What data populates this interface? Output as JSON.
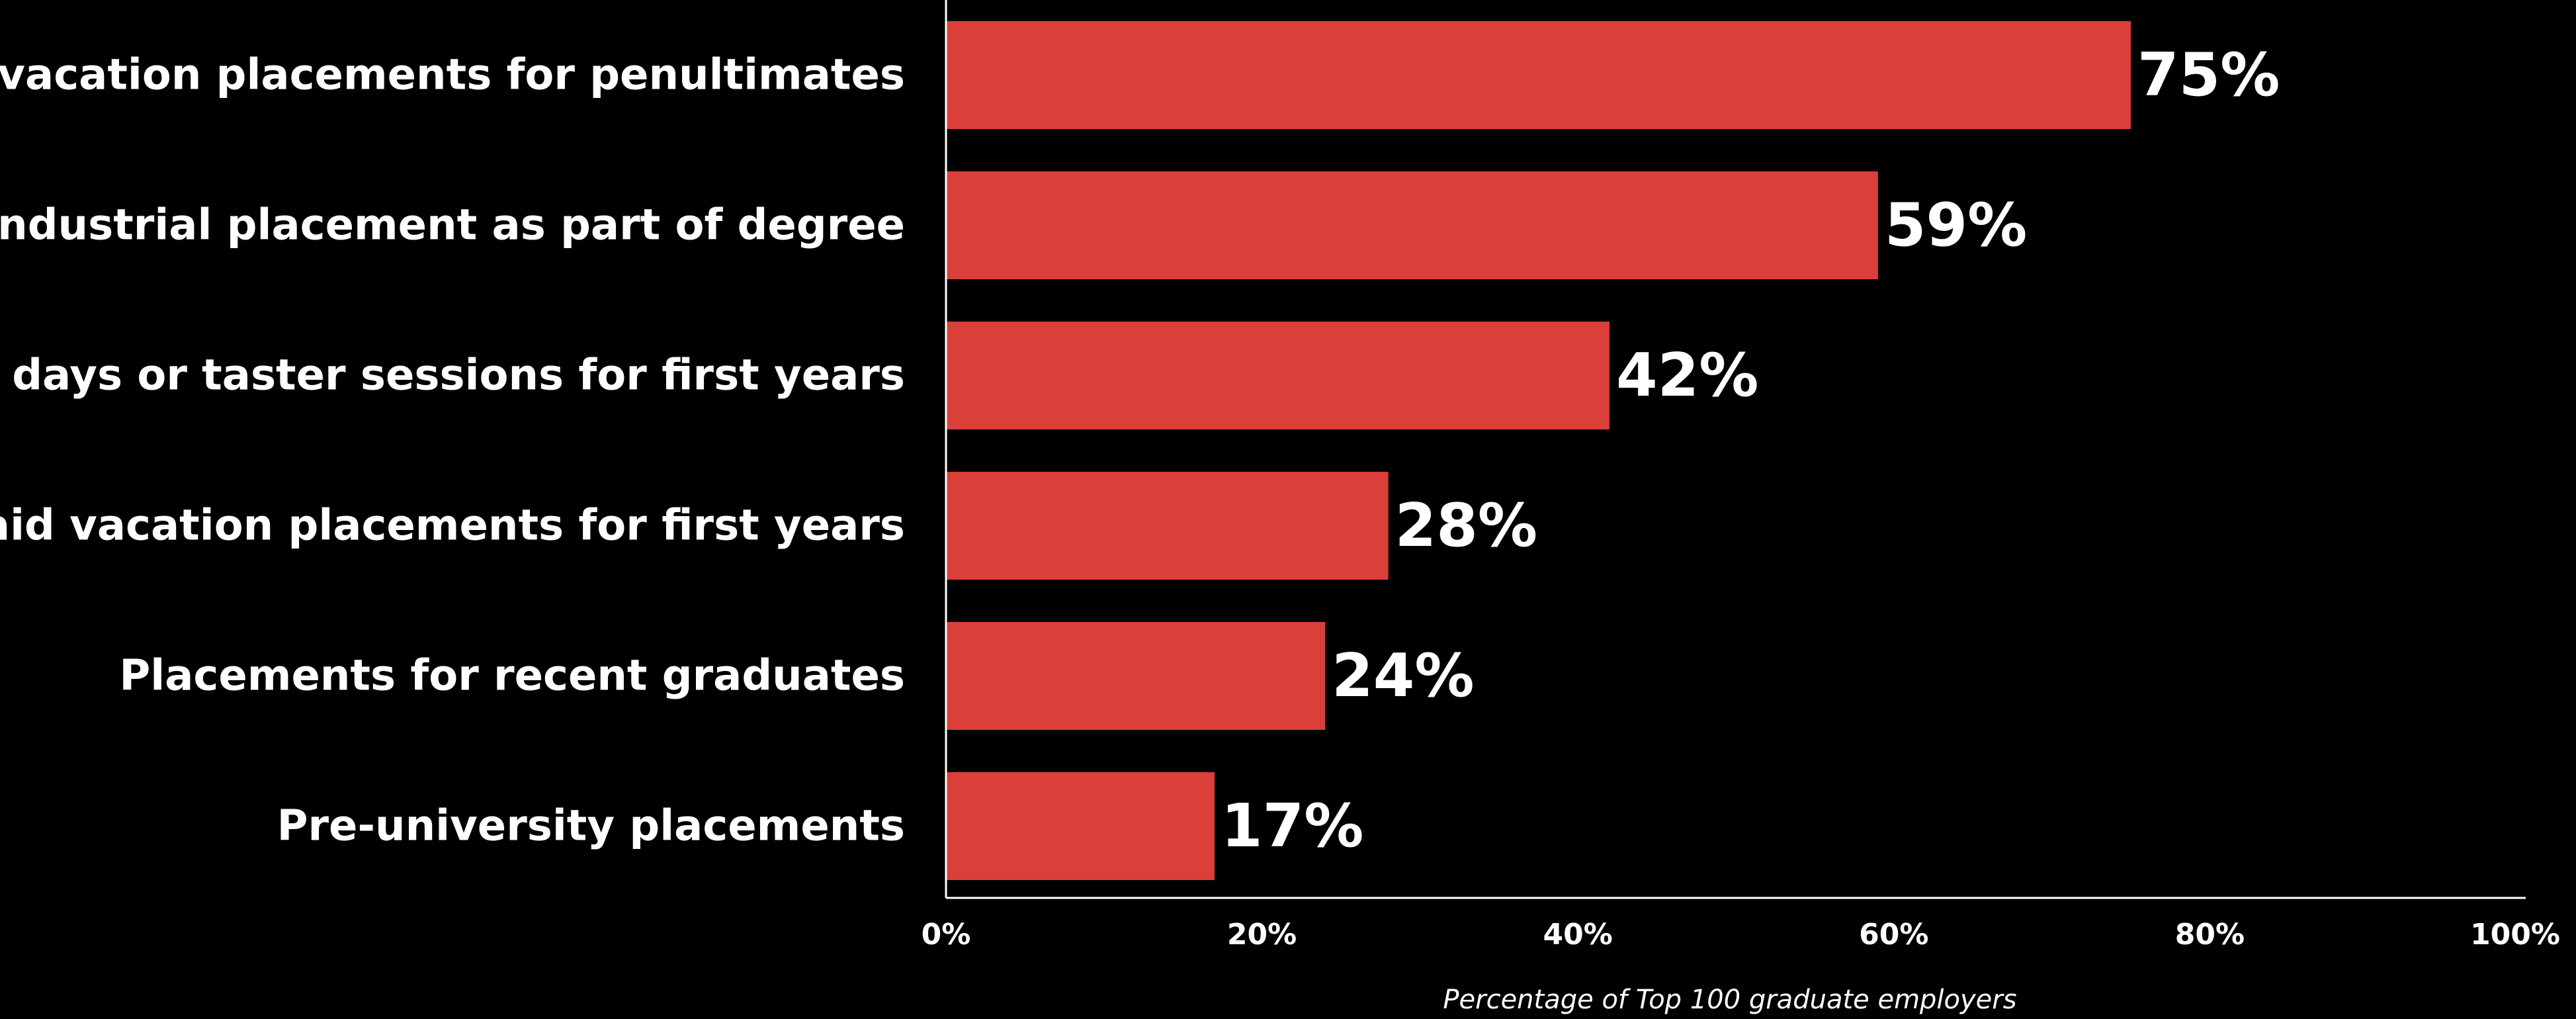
{
  "chart_data": {
    "type": "bar",
    "orientation": "horizontal",
    "categories": [
      "Paid vacation placements for penultimates",
      "Industrial placement as part of degree",
      "Open days or taster sessions for first years",
      "Paid vacation placements for first years",
      "Placements for recent graduates",
      "Pre-university placements"
    ],
    "values": [
      75,
      59,
      42,
      28,
      24,
      17
    ],
    "data_labels": [
      "75%",
      "59%",
      "42%",
      "28%",
      "24%",
      "17%"
    ],
    "xlabel": "Percentage of Top 100 graduate employers",
    "ylabel": "",
    "xlim": [
      0,
      100
    ],
    "x_ticks": [
      0,
      20,
      40,
      60,
      80,
      100
    ],
    "x_tick_labels": [
      "0%",
      "20%",
      "40%",
      "60%",
      "80%",
      "100%"
    ],
    "grid": false,
    "legend": "none",
    "bar_color": "#DB3F3A",
    "background": "#000000",
    "text_color": "#FFFFFF"
  }
}
